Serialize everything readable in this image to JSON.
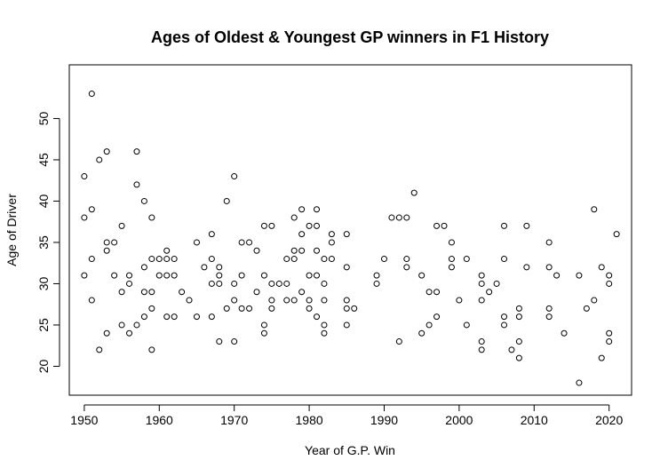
{
  "chart_data": {
    "type": "scatter",
    "title": "Ages of Oldest & Youngest GP winners in F1 History",
    "xlabel": "Year of G.P. Win",
    "ylabel": "Age of Driver",
    "xlim": [
      1948,
      2023
    ],
    "ylim": [
      16.5,
      56.5
    ],
    "xticks": [
      1950,
      1960,
      1970,
      1980,
      1990,
      2000,
      2010,
      2020
    ],
    "yticks": [
      20,
      25,
      30,
      35,
      40,
      45,
      50
    ],
    "xtick_labels": [
      "1950",
      "1960",
      "1970",
      "1980",
      "1990",
      "2000",
      "2010",
      "2020"
    ],
    "ytick_labels": [
      "20",
      "25",
      "30",
      "35",
      "40",
      "45",
      "50"
    ],
    "grid": false,
    "marker": "open-circle",
    "points": [
      [
        1950,
        43
      ],
      [
        1950,
        38
      ],
      [
        1950,
        31
      ],
      [
        1951,
        53
      ],
      [
        1951,
        39
      ],
      [
        1951,
        33
      ],
      [
        1951,
        28
      ],
      [
        1952,
        45
      ],
      [
        1952,
        22
      ],
      [
        1953,
        46
      ],
      [
        1953,
        35
      ],
      [
        1953,
        34
      ],
      [
        1953,
        24
      ],
      [
        1954,
        35
      ],
      [
        1954,
        31
      ],
      [
        1955,
        37
      ],
      [
        1955,
        29
      ],
      [
        1955,
        25
      ],
      [
        1956,
        31
      ],
      [
        1956,
        30
      ],
      [
        1956,
        24
      ],
      [
        1957,
        46
      ],
      [
        1957,
        42
      ],
      [
        1957,
        25
      ],
      [
        1958,
        40
      ],
      [
        1958,
        32
      ],
      [
        1958,
        29
      ],
      [
        1958,
        26
      ],
      [
        1959,
        38
      ],
      [
        1959,
        33
      ],
      [
        1959,
        29
      ],
      [
        1959,
        27
      ],
      [
        1959,
        22
      ],
      [
        1960,
        33
      ],
      [
        1960,
        31
      ],
      [
        1961,
        34
      ],
      [
        1961,
        33
      ],
      [
        1961,
        31
      ],
      [
        1961,
        26
      ],
      [
        1962,
        33
      ],
      [
        1962,
        31
      ],
      [
        1962,
        26
      ],
      [
        1963,
        29
      ],
      [
        1964,
        28
      ],
      [
        1965,
        35
      ],
      [
        1965,
        26
      ],
      [
        1966,
        32
      ],
      [
        1967,
        36
      ],
      [
        1967,
        33
      ],
      [
        1967,
        30
      ],
      [
        1967,
        26
      ],
      [
        1968,
        32
      ],
      [
        1968,
        31
      ],
      [
        1968,
        30
      ],
      [
        1968,
        23
      ],
      [
        1969,
        40
      ],
      [
        1969,
        27
      ],
      [
        1970,
        43
      ],
      [
        1970,
        30
      ],
      [
        1970,
        28
      ],
      [
        1970,
        23
      ],
      [
        1971,
        35
      ],
      [
        1971,
        31
      ],
      [
        1971,
        27
      ],
      [
        1972,
        35
      ],
      [
        1972,
        27
      ],
      [
        1973,
        34
      ],
      [
        1973,
        29
      ],
      [
        1974,
        37
      ],
      [
        1974,
        31
      ],
      [
        1974,
        25
      ],
      [
        1974,
        24
      ],
      [
        1975,
        37
      ],
      [
        1975,
        30
      ],
      [
        1975,
        28
      ],
      [
        1975,
        27
      ],
      [
        1976,
        30
      ],
      [
        1977,
        30
      ],
      [
        1977,
        28
      ],
      [
        1977,
        33
      ],
      [
        1978,
        38
      ],
      [
        1978,
        34
      ],
      [
        1978,
        33
      ],
      [
        1978,
        28
      ],
      [
        1979,
        39
      ],
      [
        1979,
        36
      ],
      [
        1979,
        34
      ],
      [
        1979,
        29
      ],
      [
        1980,
        37
      ],
      [
        1980,
        31
      ],
      [
        1980,
        28
      ],
      [
        1980,
        27
      ],
      [
        1981,
        39
      ],
      [
        1981,
        37
      ],
      [
        1981,
        34
      ],
      [
        1981,
        31
      ],
      [
        1981,
        26
      ],
      [
        1982,
        33
      ],
      [
        1982,
        30
      ],
      [
        1982,
        28
      ],
      [
        1982,
        25
      ],
      [
        1982,
        24
      ],
      [
        1983,
        36
      ],
      [
        1983,
        35
      ],
      [
        1983,
        33
      ],
      [
        1985,
        36
      ],
      [
        1985,
        32
      ],
      [
        1985,
        28
      ],
      [
        1985,
        27
      ],
      [
        1985,
        25
      ],
      [
        1986,
        27
      ],
      [
        1989,
        31
      ],
      [
        1989,
        30
      ],
      [
        1990,
        33
      ],
      [
        1991,
        38
      ],
      [
        1992,
        38
      ],
      [
        1992,
        23
      ],
      [
        1993,
        38
      ],
      [
        1993,
        33
      ],
      [
        1993,
        32
      ],
      [
        1994,
        41
      ],
      [
        1995,
        31
      ],
      [
        1995,
        24
      ],
      [
        1996,
        29
      ],
      [
        1996,
        25
      ],
      [
        1997,
        37
      ],
      [
        1997,
        29
      ],
      [
        1997,
        26
      ],
      [
        1998,
        37
      ],
      [
        1999,
        35
      ],
      [
        1999,
        33
      ],
      [
        1999,
        32
      ],
      [
        2000,
        28
      ],
      [
        2001,
        33
      ],
      [
        2001,
        25
      ],
      [
        2003,
        31
      ],
      [
        2003,
        30
      ],
      [
        2003,
        28
      ],
      [
        2003,
        23
      ],
      [
        2003,
        22
      ],
      [
        2004,
        29
      ],
      [
        2005,
        30
      ],
      [
        2006,
        37
      ],
      [
        2006,
        33
      ],
      [
        2006,
        26
      ],
      [
        2006,
        25
      ],
      [
        2007,
        22
      ],
      [
        2008,
        27
      ],
      [
        2008,
        26
      ],
      [
        2008,
        23
      ],
      [
        2008,
        21
      ],
      [
        2009,
        37
      ],
      [
        2009,
        32
      ],
      [
        2012,
        35
      ],
      [
        2012,
        32
      ],
      [
        2012,
        27
      ],
      [
        2012,
        26
      ],
      [
        2013,
        31
      ],
      [
        2014,
        24
      ],
      [
        2016,
        31
      ],
      [
        2016,
        18
      ],
      [
        2017,
        27
      ],
      [
        2018,
        39
      ],
      [
        2018,
        28
      ],
      [
        2019,
        32
      ],
      [
        2019,
        21
      ],
      [
        2020,
        31
      ],
      [
        2020,
        30
      ],
      [
        2020,
        24
      ],
      [
        2020,
        23
      ],
      [
        2021,
        36
      ]
    ]
  }
}
